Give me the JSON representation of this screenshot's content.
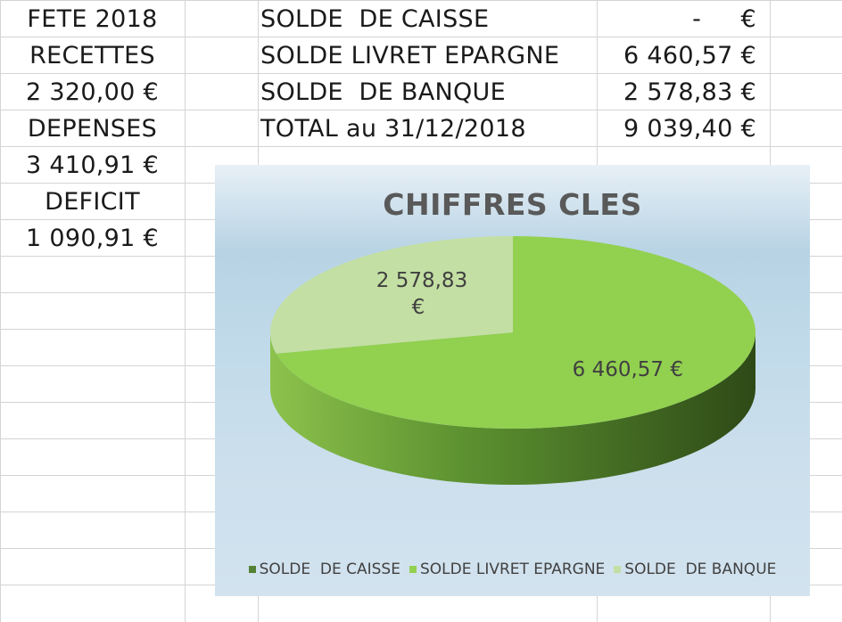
{
  "left_column": [
    "FETE 2018",
    "RECETTES",
    "2 320,00 €",
    "DEPENSES",
    "3 410,91 €",
    "DEFICIT",
    "1 090,91 €"
  ],
  "summary_rows": [
    {
      "label": "SOLDE  DE CAISSE",
      "value": "-     €"
    },
    {
      "label": "SOLDE LIVRET EPARGNE",
      "value": "6 460,57 €"
    },
    {
      "label": "SOLDE  DE BANQUE",
      "value": "2 578,83 €"
    },
    {
      "label": "TOTAL au 31/12/2018",
      "value": "9 039,40 €"
    }
  ],
  "colors": {
    "gridline": "#d4d4d4",
    "slice_livret": "#92d050",
    "slice_banque": "#c3dfa3",
    "slice_caisse": "#548235"
  },
  "chart_data": {
    "type": "pie",
    "title": "CHIFFRES CLES",
    "categories": [
      "SOLDE  DE CAISSE",
      "SOLDE LIVRET EPARGNE",
      "SOLDE  DE BANQUE"
    ],
    "values": [
      0,
      6460.57,
      2578.83
    ],
    "data_labels": [
      "",
      "6 460,57 €",
      "2 578,83 €"
    ],
    "legend_position": "bottom"
  }
}
